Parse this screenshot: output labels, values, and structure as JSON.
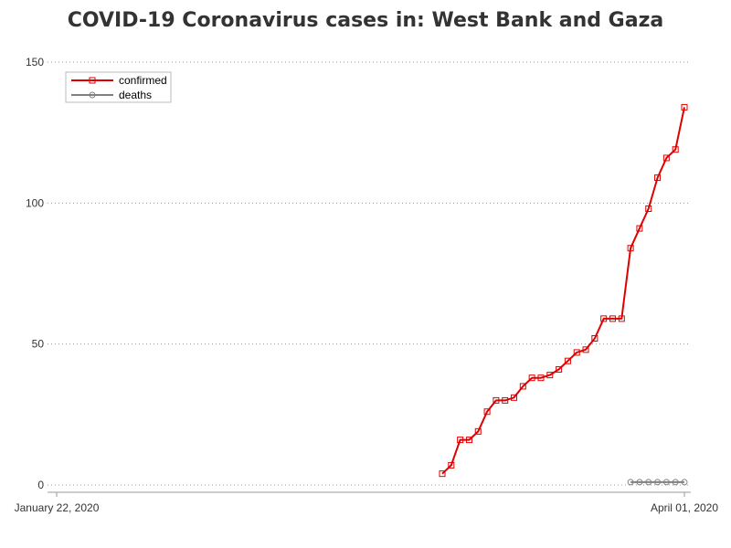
{
  "chart_data": {
    "type": "line",
    "title": "COVID-19 Coronavirus cases in: West Bank and Gaza",
    "x_tick_labels": [
      "January 22, 2020",
      "April 01, 2020"
    ],
    "x_range": [
      "2020-01-22",
      "2020-04-01"
    ],
    "y_ticks": [
      0,
      50,
      100,
      150
    ],
    "ylim": [
      0,
      150
    ],
    "grid": "horizontal dotted",
    "legend_position": "top-left",
    "series": [
      {
        "name": "confirmed",
        "color": "#e00000",
        "marker": "square",
        "points": [
          {
            "x": "2020-03-05",
            "y": 4
          },
          {
            "x": "2020-03-06",
            "y": 7
          },
          {
            "x": "2020-03-07",
            "y": 16
          },
          {
            "x": "2020-03-08",
            "y": 16
          },
          {
            "x": "2020-03-09",
            "y": 19
          },
          {
            "x": "2020-03-10",
            "y": 26
          },
          {
            "x": "2020-03-11",
            "y": 30
          },
          {
            "x": "2020-03-12",
            "y": 30
          },
          {
            "x": "2020-03-13",
            "y": 31
          },
          {
            "x": "2020-03-14",
            "y": 35
          },
          {
            "x": "2020-03-15",
            "y": 38
          },
          {
            "x": "2020-03-16",
            "y": 38
          },
          {
            "x": "2020-03-17",
            "y": 39
          },
          {
            "x": "2020-03-18",
            "y": 41
          },
          {
            "x": "2020-03-19",
            "y": 44
          },
          {
            "x": "2020-03-20",
            "y": 47
          },
          {
            "x": "2020-03-21",
            "y": 48
          },
          {
            "x": "2020-03-22",
            "y": 52
          },
          {
            "x": "2020-03-23",
            "y": 59
          },
          {
            "x": "2020-03-24",
            "y": 59
          },
          {
            "x": "2020-03-25",
            "y": 59
          },
          {
            "x": "2020-03-26",
            "y": 84
          },
          {
            "x": "2020-03-27",
            "y": 91
          },
          {
            "x": "2020-03-28",
            "y": 98
          },
          {
            "x": "2020-03-29",
            "y": 109
          },
          {
            "x": "2020-03-30",
            "y": 116
          },
          {
            "x": "2020-03-31",
            "y": 119
          },
          {
            "x": "2020-04-01",
            "y": 134
          }
        ]
      },
      {
        "name": "deaths",
        "color": "#808080",
        "marker": "circle",
        "points": [
          {
            "x": "2020-03-26",
            "y": 1
          },
          {
            "x": "2020-03-27",
            "y": 1
          },
          {
            "x": "2020-03-28",
            "y": 1
          },
          {
            "x": "2020-03-29",
            "y": 1
          },
          {
            "x": "2020-03-30",
            "y": 1
          },
          {
            "x": "2020-03-31",
            "y": 1
          },
          {
            "x": "2020-04-01",
            "y": 1
          }
        ]
      }
    ]
  }
}
